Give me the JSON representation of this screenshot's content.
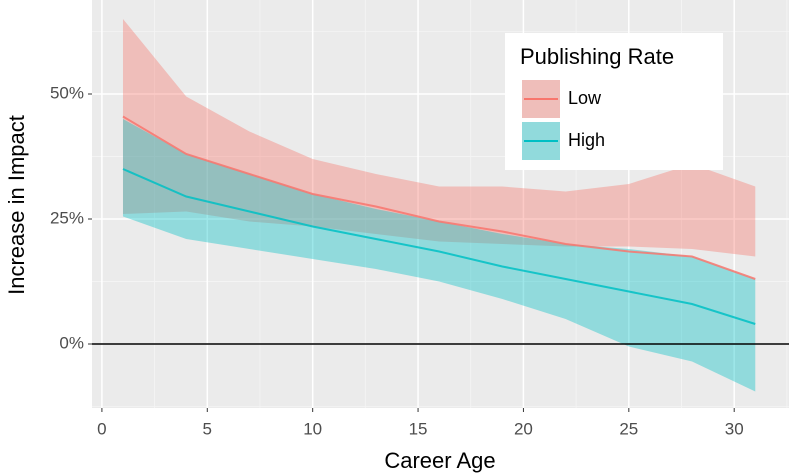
{
  "chart_data": {
    "type": "line",
    "xlabel": "Career Age",
    "ylabel": "Increase in Impact",
    "x": [
      1,
      4,
      7,
      10,
      13,
      16,
      19,
      22,
      25,
      28,
      31
    ],
    "series": [
      {
        "name": "Low",
        "color": "#F8766D",
        "values": [
          45.5,
          38,
          34,
          30,
          27.5,
          24.5,
          22.5,
          20,
          18.5,
          17.5,
          13
        ],
        "upper": [
          65,
          49.5,
          42.5,
          37,
          34,
          31.5,
          31.5,
          30.5,
          32,
          36,
          31.5
        ],
        "lower": [
          26,
          26.5,
          24.5,
          23.5,
          22,
          20.5,
          20,
          19.5,
          19.5,
          19,
          17.5
        ]
      },
      {
        "name": "High",
        "color": "#00BFC4",
        "values": [
          35,
          29.5,
          26.5,
          23.5,
          21,
          18.5,
          15.5,
          13,
          10.5,
          8,
          4
        ],
        "upper": [
          45,
          38,
          34,
          30,
          27,
          24.5,
          22,
          20,
          19,
          17.5,
          13
        ],
        "lower": [
          25.5,
          21,
          19,
          17,
          15,
          12.5,
          9,
          5,
          -0.5,
          -3.5,
          -9.5
        ]
      }
    ],
    "legend_title": "Publishing Rate",
    "legend": "top-right",
    "xlim": [
      -0.47,
      32.6
    ],
    "ylim": [
      -12.8,
      68.8
    ],
    "xticks": [
      0,
      5,
      10,
      15,
      20,
      25,
      30
    ],
    "yticks": [
      {
        "value": 0,
        "label": "0%"
      },
      {
        "value": 25,
        "label": "25%"
      },
      {
        "value": 50,
        "label": "50%"
      }
    ],
    "reference_line": 0,
    "grid": true
  }
}
